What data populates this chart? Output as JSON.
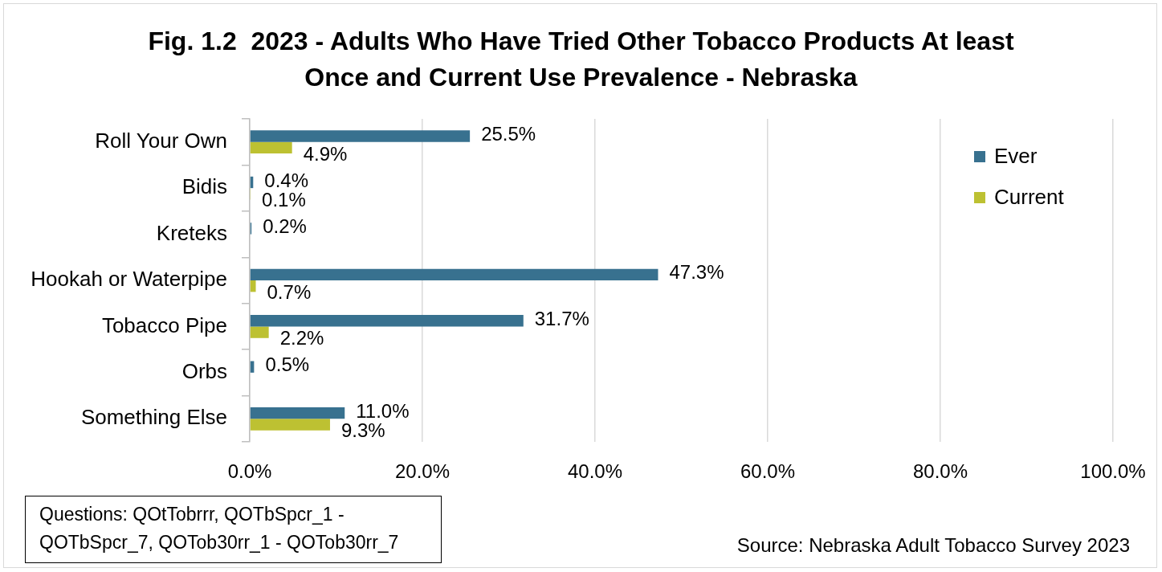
{
  "chart_data": {
    "type": "bar",
    "orientation": "horizontal",
    "title": "Fig. 1.2  2023 - Adults Who Have Tried Other Tobacco Products At least Once and Current Use Prevalence - Nebraska",
    "categories": [
      "Roll Your Own",
      "Bidis",
      "Kreteks",
      "Hookah or Waterpipe",
      "Tobacco Pipe",
      "Orbs",
      "Something Else"
    ],
    "series": [
      {
        "name": "Ever",
        "color": "#38718f",
        "values": [
          25.5,
          0.4,
          0.2,
          47.3,
          31.7,
          0.5,
          11.0
        ],
        "value_labels": [
          "25.5%",
          "0.4%",
          "0.2%",
          "47.3%",
          "31.7%",
          "0.5%",
          "11.0%"
        ]
      },
      {
        "name": "Current",
        "color": "#bdc132",
        "values": [
          4.9,
          0.1,
          null,
          0.7,
          2.2,
          null,
          9.3
        ],
        "value_labels": [
          "4.9%",
          "0.1%",
          null,
          "0.7%",
          "2.2%",
          null,
          "9.3%"
        ]
      }
    ],
    "xlim": [
      0,
      100
    ],
    "xticks": [
      {
        "value": 0,
        "label": "0.0%"
      },
      {
        "value": 20,
        "label": "20.0%"
      },
      {
        "value": 40,
        "label": "40.0%"
      },
      {
        "value": 60,
        "label": "60.0%"
      },
      {
        "value": 80,
        "label": "80.0%"
      },
      {
        "value": 100,
        "label": "100.0%"
      }
    ],
    "grid": "x",
    "legend": "top right",
    "annotations": [
      "Questions: QOtTobrrr, QOTbSpcr_1 - QOTbSpcr_7, QOTob30rr_1 - QOTob30rr_7",
      "Source: Nebraska Adult Tobacco Survey 2023"
    ]
  }
}
